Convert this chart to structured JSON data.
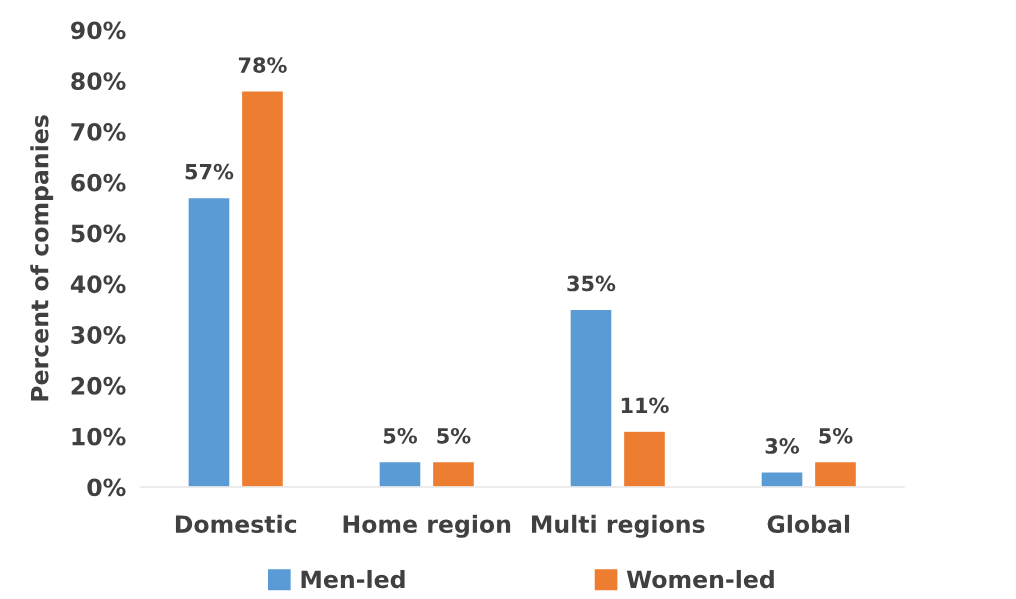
{
  "chart_data": {
    "type": "bar",
    "ylabel": "Percent of companies",
    "categories": [
      "Domestic",
      "Home region",
      "Multi regions",
      "Global"
    ],
    "series": [
      {
        "name": "Men-led",
        "color": "#5b9bd5",
        "values": [
          57,
          5,
          35,
          3
        ]
      },
      {
        "name": "Women-led",
        "color": "#ed7d31",
        "values": [
          78,
          5,
          11,
          5
        ]
      }
    ],
    "ylim": [
      0,
      90
    ],
    "yticks": [
      {
        "value": 0,
        "label": "0%"
      },
      {
        "value": 10,
        "label": "10%"
      },
      {
        "value": 20,
        "label": "20%"
      },
      {
        "value": 30,
        "label": "30%"
      },
      {
        "value": 40,
        "label": "40%"
      },
      {
        "value": 50,
        "label": "50%"
      },
      {
        "value": 60,
        "label": "60%"
      },
      {
        "value": 70,
        "label": "70%"
      },
      {
        "value": 80,
        "label": "80%"
      },
      {
        "value": 90,
        "label": "90%"
      }
    ],
    "value_labels": [
      [
        "57%",
        "5%",
        "35%",
        "3%"
      ],
      [
        "78%",
        "5%",
        "11%",
        "5%"
      ]
    ],
    "grid": false,
    "legend": "bottom"
  }
}
